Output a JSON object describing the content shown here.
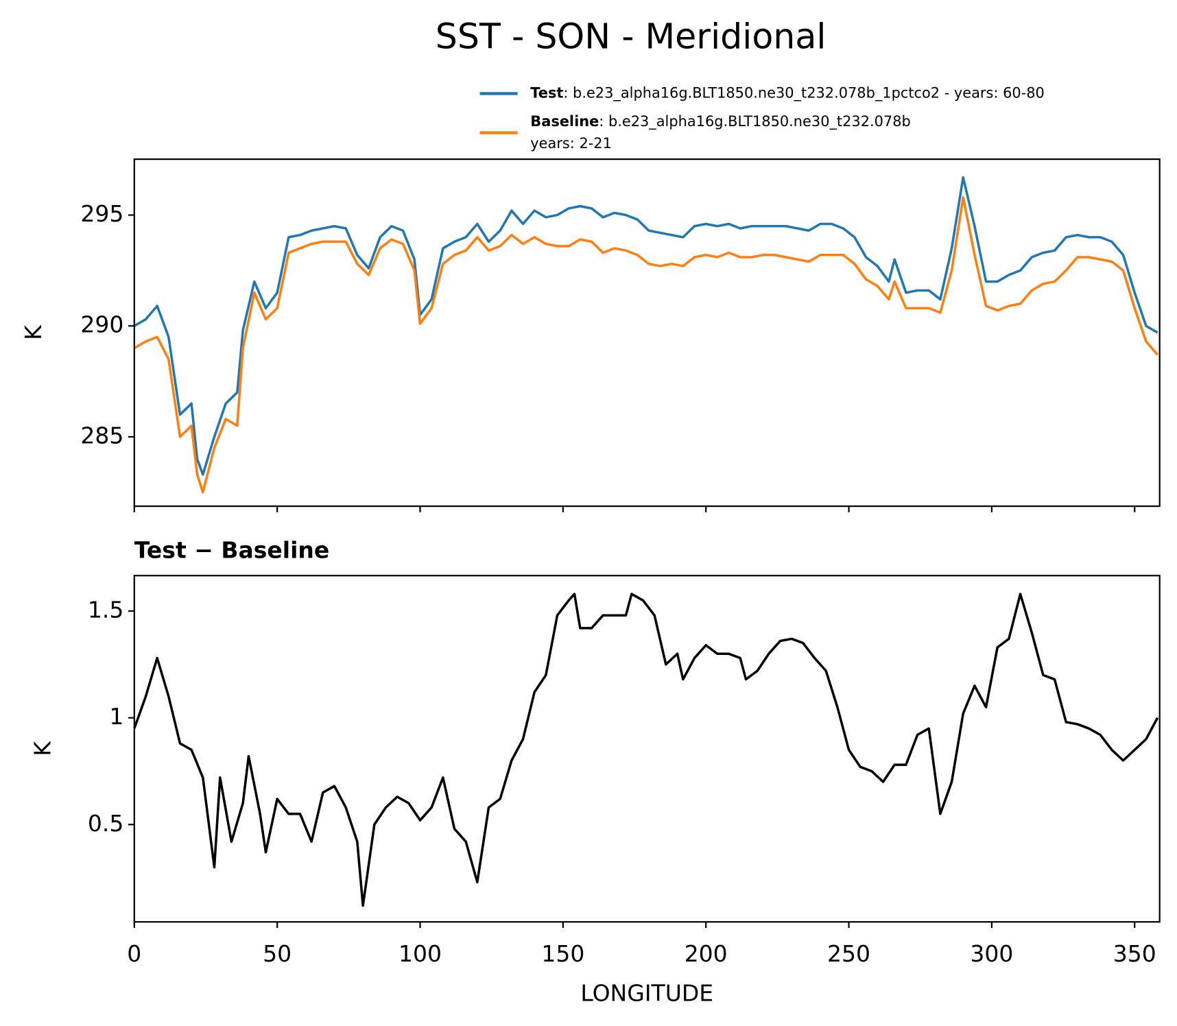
{
  "title": "SST - SON - Meridional",
  "chart_data": [
    {
      "type": "line",
      "ylabel": "K",
      "x": [
        0,
        4,
        8,
        12,
        16,
        20,
        22,
        24,
        28,
        32,
        36,
        38,
        42,
        46,
        50,
        54,
        58,
        62,
        66,
        70,
        74,
        78,
        82,
        86,
        90,
        94,
        98,
        100,
        104,
        108,
        112,
        116,
        120,
        124,
        128,
        132,
        136,
        140,
        144,
        148,
        152,
        156,
        160,
        164,
        168,
        172,
        176,
        180,
        184,
        188,
        192,
        196,
        200,
        204,
        208,
        212,
        216,
        220,
        224,
        228,
        232,
        236,
        240,
        244,
        248,
        252,
        256,
        260,
        264,
        266,
        270,
        274,
        278,
        282,
        286,
        290,
        294,
        298,
        302,
        306,
        310,
        314,
        318,
        322,
        326,
        330,
        334,
        338,
        342,
        346,
        350,
        354,
        358
      ],
      "series": [
        {
          "name": "Test",
          "description": [
            ": b.e23_alpha16g.BLT1850.ne30_t232.078b_1pctco2 - years: 60-80"
          ],
          "color": "#1f77b4",
          "values": [
            290.0,
            290.3,
            290.9,
            289.5,
            286.0,
            286.5,
            284.0,
            283.3,
            285.0,
            286.5,
            287.0,
            289.8,
            292.0,
            290.8,
            291.5,
            294.0,
            294.1,
            294.3,
            294.4,
            294.5,
            294.4,
            293.2,
            292.6,
            294.0,
            294.5,
            294.3,
            293.0,
            290.5,
            291.2,
            293.5,
            293.8,
            294.0,
            294.6,
            293.8,
            294.3,
            295.2,
            294.6,
            295.2,
            294.9,
            295.0,
            295.3,
            295.4,
            295.3,
            294.9,
            295.1,
            295.0,
            294.8,
            294.3,
            294.2,
            294.1,
            294.0,
            294.5,
            294.6,
            294.5,
            294.6,
            294.4,
            294.5,
            294.5,
            294.5,
            294.5,
            294.4,
            294.3,
            294.6,
            294.6,
            294.4,
            294.0,
            293.1,
            292.7,
            292.0,
            293.0,
            291.5,
            291.6,
            291.6,
            291.2,
            293.5,
            296.7,
            294.5,
            292.0,
            292.0,
            292.3,
            292.5,
            293.1,
            293.3,
            293.4,
            294.0,
            294.1,
            294.0,
            294.0,
            293.8,
            293.2,
            291.5,
            290.0,
            289.7
          ]
        },
        {
          "name": "Baseline",
          "description": [
            ": b.e23_alpha16g.BLT1850.ne30_t232.078b",
            "years: 2-21"
          ],
          "color": "#ff7f0e",
          "values": [
            289.0,
            289.3,
            289.5,
            288.5,
            285.0,
            285.5,
            283.3,
            282.5,
            284.5,
            285.8,
            285.5,
            289.0,
            291.5,
            290.3,
            290.8,
            293.3,
            293.5,
            293.7,
            293.8,
            293.8,
            293.8,
            292.8,
            292.3,
            293.5,
            293.9,
            293.7,
            292.5,
            290.1,
            290.8,
            292.8,
            293.2,
            293.4,
            294.0,
            293.4,
            293.6,
            294.1,
            293.7,
            294.0,
            293.7,
            293.6,
            293.6,
            293.9,
            293.8,
            293.3,
            293.5,
            293.4,
            293.2,
            292.8,
            292.7,
            292.8,
            292.7,
            293.1,
            293.2,
            293.1,
            293.3,
            293.1,
            293.1,
            293.2,
            293.2,
            293.1,
            293.0,
            292.9,
            293.2,
            293.2,
            293.2,
            292.8,
            292.1,
            291.8,
            291.2,
            292.0,
            290.8,
            290.8,
            290.8,
            290.6,
            292.5,
            295.8,
            293.2,
            290.9,
            290.7,
            290.9,
            291.0,
            291.6,
            291.9,
            292.0,
            292.5,
            293.1,
            293.1,
            293.0,
            292.9,
            292.5,
            290.8,
            289.3,
            288.7
          ]
        }
      ],
      "xlim": [
        0,
        358.75
      ],
      "xticks": [
        0,
        50,
        100,
        150,
        200,
        250,
        300,
        350
      ],
      "ylim": [
        281.87,
        297.52
      ],
      "yticks": [
        285,
        290,
        295
      ]
    },
    {
      "type": "line",
      "title": "Test − Baseline",
      "ylabel": "K",
      "xlabel": "LONGITUDE",
      "x": [
        0,
        4,
        8,
        12,
        16,
        20,
        24,
        28,
        30,
        34,
        38,
        40,
        44,
        46,
        50,
        54,
        58,
        62,
        66,
        70,
        74,
        78,
        80,
        84,
        88,
        92,
        96,
        100,
        104,
        108,
        112,
        116,
        120,
        124,
        128,
        132,
        136,
        140,
        144,
        148,
        152,
        154,
        156,
        160,
        164,
        168,
        172,
        174,
        178,
        182,
        186,
        190,
        192,
        196,
        200,
        204,
        208,
        212,
        214,
        218,
        222,
        226,
        230,
        234,
        238,
        242,
        246,
        250,
        254,
        258,
        262,
        266,
        270,
        274,
        278,
        282,
        286,
        290,
        294,
        298,
        302,
        306,
        310,
        314,
        318,
        322,
        326,
        330,
        334,
        338,
        342,
        346,
        350,
        354,
        358
      ],
      "series": [
        {
          "name": "Test − Baseline",
          "color": "#000000",
          "values": [
            0.95,
            1.1,
            1.28,
            1.1,
            0.88,
            0.85,
            0.72,
            0.3,
            0.72,
            0.42,
            0.6,
            0.82,
            0.55,
            0.37,
            0.62,
            0.55,
            0.55,
            0.42,
            0.65,
            0.68,
            0.58,
            0.42,
            0.12,
            0.5,
            0.58,
            0.63,
            0.6,
            0.52,
            0.58,
            0.72,
            0.48,
            0.42,
            0.23,
            0.58,
            0.62,
            0.8,
            0.9,
            1.12,
            1.2,
            1.48,
            1.55,
            1.58,
            1.42,
            1.42,
            1.48,
            1.48,
            1.48,
            1.58,
            1.55,
            1.48,
            1.25,
            1.3,
            1.18,
            1.28,
            1.34,
            1.3,
            1.3,
            1.28,
            1.18,
            1.22,
            1.3,
            1.36,
            1.37,
            1.35,
            1.28,
            1.22,
            1.05,
            0.85,
            0.77,
            0.75,
            0.7,
            0.78,
            0.78,
            0.92,
            0.95,
            0.55,
            0.7,
            1.02,
            1.15,
            1.05,
            1.33,
            1.37,
            1.58,
            1.4,
            1.2,
            1.18,
            0.98,
            0.97,
            0.95,
            0.92,
            0.85,
            0.8,
            0.85,
            0.9,
            1.0
          ]
        }
      ],
      "xlim": [
        0,
        358.75
      ],
      "xticks": [
        0,
        50,
        100,
        150,
        200,
        250,
        300,
        350
      ],
      "ylim": [
        0.044,
        1.666
      ],
      "yticks": [
        0.5,
        1.0,
        1.5
      ]
    }
  ]
}
